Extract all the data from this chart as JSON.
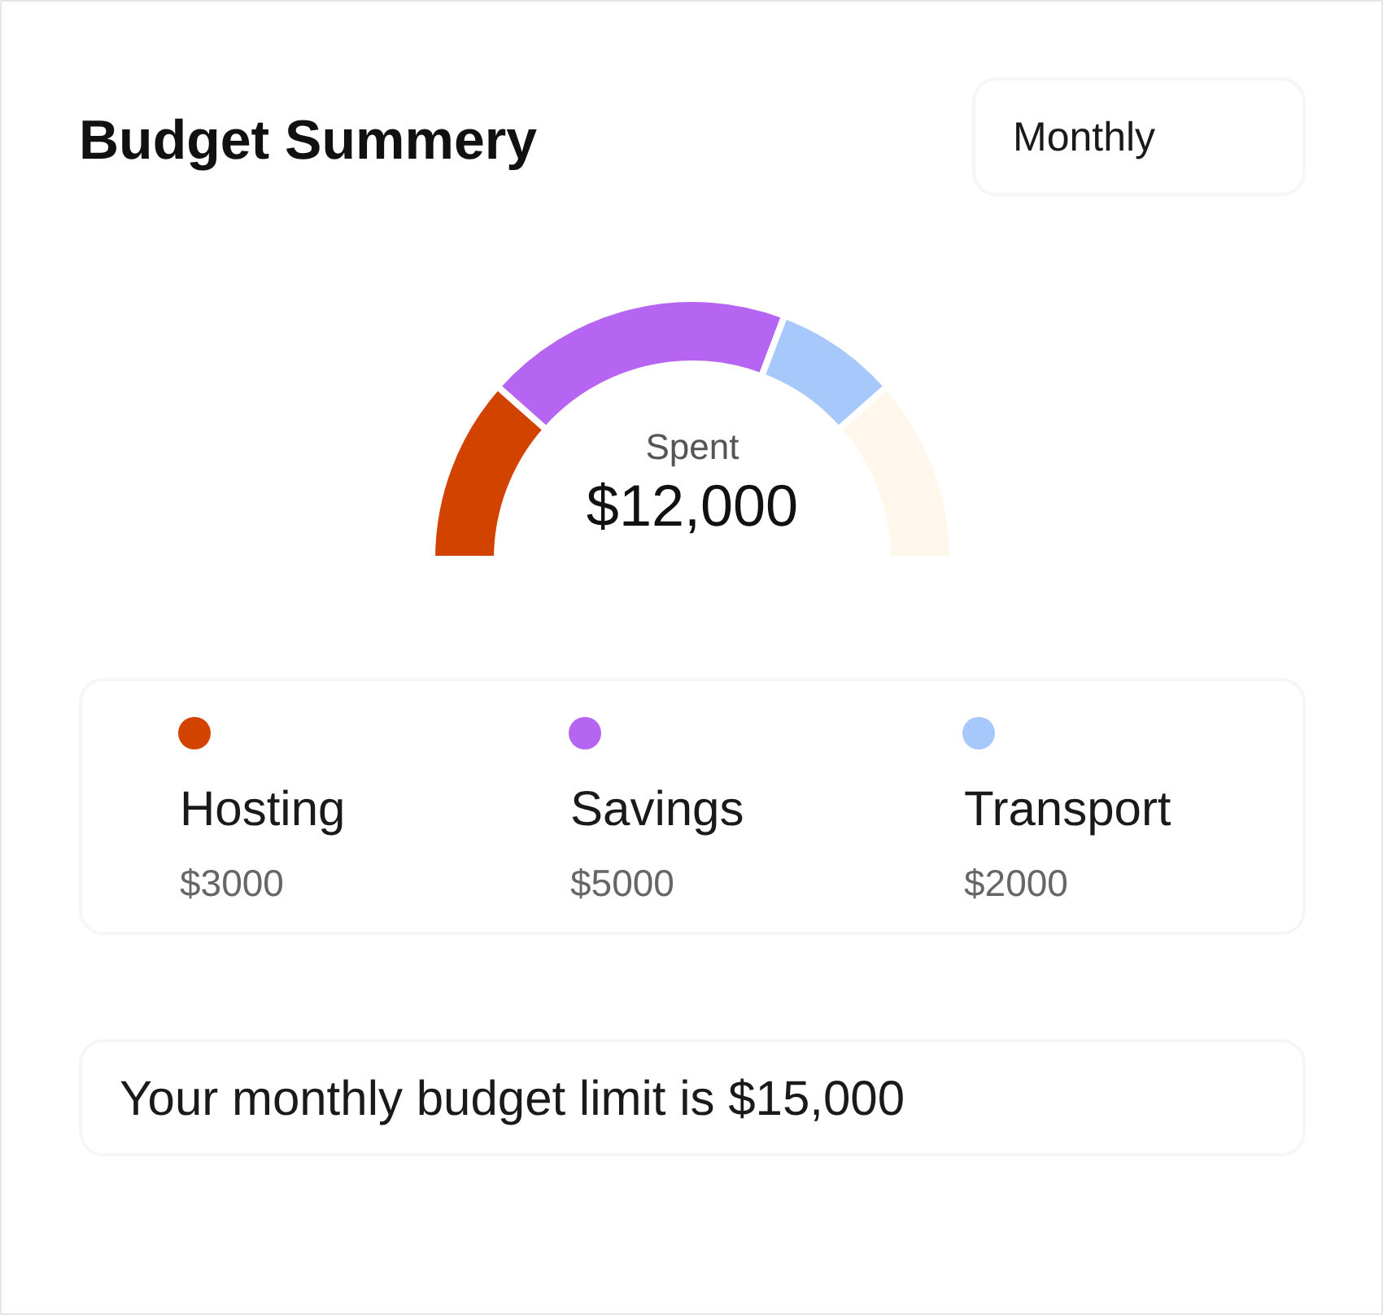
{
  "chart_data": {
    "type": "donut",
    "title": "Budget Summery",
    "categories": [
      "Hosting",
      "Savings",
      "Transport",
      null
    ],
    "values": [
      3000,
      5000,
      2000,
      3000
    ],
    "value_labels": [
      "$3000",
      "$5000",
      "$2000",
      null
    ],
    "colors": [
      "#d34300",
      "#b665f2",
      "#a7c8fb",
      "#fff6ec"
    ],
    "legend": "bottom",
    "annotations": [
      "Monthly",
      "Spent",
      "$12,000",
      "Your monthly budget limit is $15,000"
    ]
  }
}
